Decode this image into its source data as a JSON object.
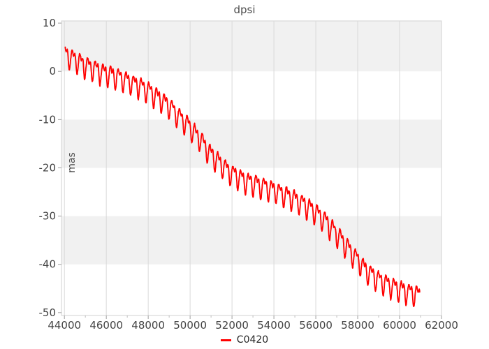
{
  "chart_data": {
    "type": "line",
    "title": "dpsi",
    "xlabel": "",
    "ylabel": "mas",
    "xlim": [
      43860,
      62000
    ],
    "ylim": [
      -50.6,
      10.45
    ],
    "xticks": [
      44000,
      46000,
      48000,
      50000,
      52000,
      54000,
      56000,
      58000,
      60000,
      62000
    ],
    "minor_xticks": [
      45000,
      47000,
      49000,
      51000,
      53000,
      55000,
      57000,
      59000,
      61000
    ],
    "yticks": [
      10,
      0,
      -10,
      -20,
      -30,
      -40,
      -50
    ],
    "grid": {
      "vertical_major_gridlines": true,
      "horizontal_gridlines": false,
      "alternating_horizontal_bands": true
    },
    "legend": {
      "position": "bottom-center",
      "entries": [
        "C0420"
      ]
    },
    "colors": {
      "series": "#ff0000",
      "band": "#f1f1f1",
      "grid": "#d9d9d9",
      "panel_border": "#d9d9d9",
      "tick_mark": "#9e9e9e",
      "minor_tick_mark": "#bdbdbd",
      "tick_label": "#434343",
      "title": "#4d4d4d",
      "legend_text": "#262626"
    },
    "series": [
      {
        "name": "C0420",
        "color": "#ff0000",
        "x_start": 44040,
        "x_end": 60960,
        "sample_step_days": 8,
        "trend_anchors": [
          [
            44040,
            3.6
          ],
          [
            44500,
            2.4
          ],
          [
            45000,
            1.2
          ],
          [
            45500,
            0.4
          ],
          [
            46000,
            -0.4
          ],
          [
            46500,
            -1.1
          ],
          [
            47000,
            -1.9
          ],
          [
            47500,
            -2.8
          ],
          [
            48000,
            -4.0
          ],
          [
            48500,
            -5.5
          ],
          [
            49000,
            -7.3
          ],
          [
            49500,
            -9.5
          ],
          [
            50000,
            -11.6
          ],
          [
            50500,
            -14.2
          ],
          [
            51000,
            -17.2
          ],
          [
            51500,
            -19.3
          ],
          [
            52000,
            -21.2
          ],
          [
            52500,
            -22.4
          ],
          [
            53000,
            -23.2
          ],
          [
            53500,
            -23.9
          ],
          [
            54000,
            -24.6
          ],
          [
            54500,
            -25.5
          ],
          [
            55000,
            -26.6
          ],
          [
            55500,
            -27.7
          ],
          [
            56000,
            -29.2
          ],
          [
            56500,
            -31.2
          ],
          [
            57000,
            -33.7
          ],
          [
            57500,
            -36.4
          ],
          [
            58000,
            -39.2
          ],
          [
            58500,
            -41.6
          ],
          [
            59000,
            -43.2
          ],
          [
            59500,
            -44.3
          ],
          [
            60000,
            -45.1
          ],
          [
            60500,
            -45.8
          ],
          [
            60960,
            -46.5
          ]
        ],
        "oscillation": {
          "period_days": 365.25,
          "annual_amp": 1.8,
          "annual_phase": 1.35,
          "semiannual_amp": 1.0,
          "semiannual_phase": 3.9,
          "third_amp": 0.22,
          "third_phase": 2.0,
          "noise_amp": 0.45
        }
      }
    ]
  }
}
